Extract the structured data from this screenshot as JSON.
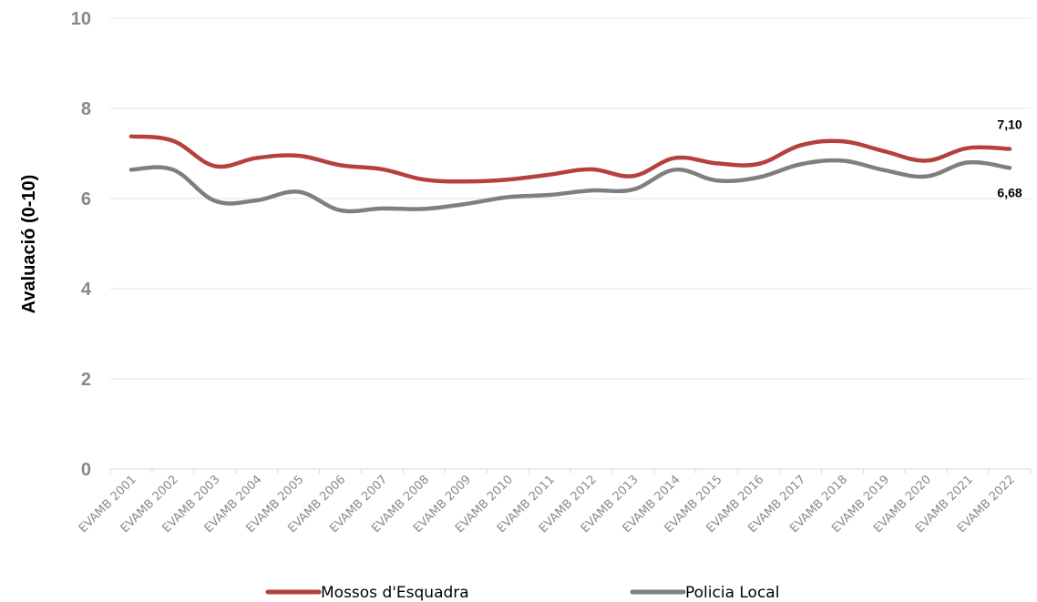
{
  "chart_data": {
    "type": "line",
    "ylabel": "Avaluació (0-10)",
    "xlabel": "",
    "ylim": [
      0,
      10
    ],
    "yticks": [
      "0",
      "2",
      "4",
      "6",
      "8",
      "10"
    ],
    "grid": true,
    "legend_position": "bottom",
    "categories": [
      "EVAMB 2001",
      "EVAMB 2002",
      "EVAMB 2003",
      "EVAMB 2004",
      "EVAMB 2005",
      "EVAMB 2006",
      "EVAMB 2007",
      "EVAMB 2008",
      "EVAMB 2009",
      "EVAMB 2010",
      "EVAMB 2011",
      "EVAMB 2012",
      "EVAMB 2013",
      "EVAMB 2014",
      "EVAMB 2015",
      "EVAMB 2016",
      "EVAMB 2017",
      "EVAMB 2018",
      "EVAMB 2019",
      "EVAMB 2020",
      "EVAMB 2021",
      "EVAMB 2022"
    ],
    "series": [
      {
        "name": "Mossos d'Esquadra",
        "color": "#b5403c",
        "values": [
          7.38,
          7.28,
          6.72,
          6.9,
          6.95,
          6.74,
          6.65,
          6.42,
          6.38,
          6.42,
          6.53,
          6.65,
          6.5,
          6.9,
          6.78,
          6.77,
          7.18,
          7.27,
          7.05,
          6.84,
          7.12,
          7.1
        ],
        "end_label": "7,10"
      },
      {
        "name": "Policia Local",
        "color": "#7f7f7f",
        "values": [
          6.64,
          6.64,
          5.95,
          5.96,
          6.15,
          5.74,
          5.78,
          5.77,
          5.88,
          6.03,
          6.08,
          6.18,
          6.2,
          6.64,
          6.4,
          6.47,
          6.76,
          6.84,
          6.63,
          6.49,
          6.8,
          6.68
        ],
        "end_label": "6,68"
      }
    ]
  }
}
